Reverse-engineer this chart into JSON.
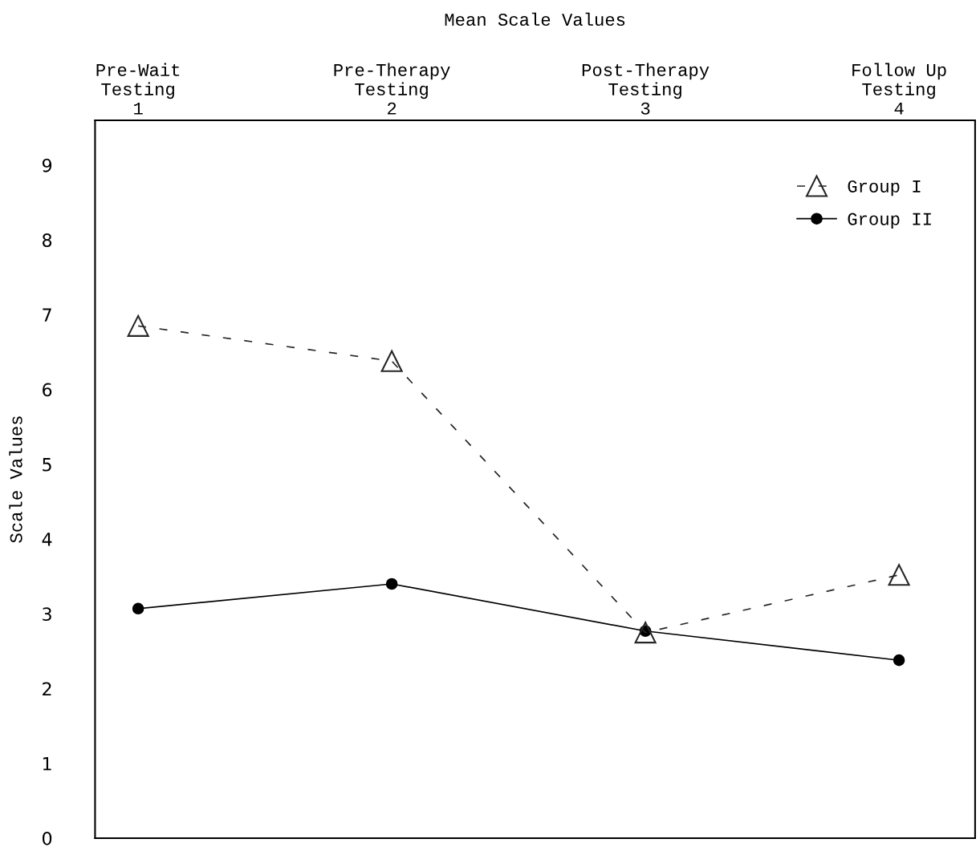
{
  "chart_data": {
    "type": "line",
    "title": "Mean Scale Values",
    "ylabel": "Scale Values",
    "categories": [
      "Pre-Wait\nTesting\n1",
      "Pre-Therapy\nTesting\n2",
      "Post-Therapy\nTesting\n3",
      "Follow Up\nTesting\n4"
    ],
    "ylim": [
      0,
      9.6
    ],
    "yticks": [
      0,
      1,
      2,
      3,
      4,
      5,
      6,
      7,
      8,
      9
    ],
    "grid": false,
    "legend": "top right",
    "series": [
      {
        "name": "Group I",
        "color": "#262626",
        "values": [
          6.85,
          6.38,
          2.75,
          3.52
        ],
        "marker": "triangle",
        "line_style": "dashed"
      },
      {
        "name": "Group II",
        "color": "#000000",
        "values": [
          3.07,
          3.4,
          2.77,
          2.38
        ],
        "marker": "circle",
        "line_style": "solid"
      }
    ]
  }
}
